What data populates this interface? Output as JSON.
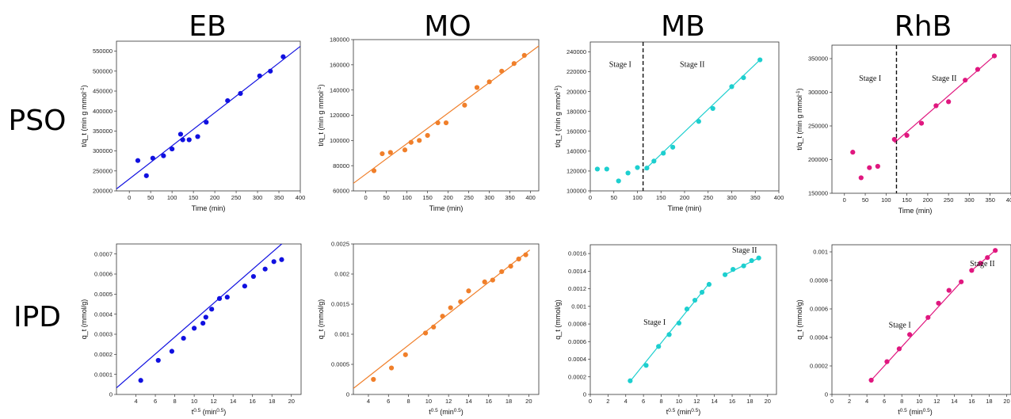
{
  "column_titles": [
    "EB",
    "MO",
    "MB",
    "RhB"
  ],
  "row_titles": [
    "PSO",
    "IPD"
  ],
  "chart_data": [
    {
      "id": "pso-eb",
      "type": "scatter",
      "color": "#1010e0",
      "xlabel": "Time (min)",
      "ylabel": "t/q_t (min g mmol^-1)",
      "xlim": [
        -30,
        400
      ],
      "ylim": [
        200000,
        575000
      ],
      "xticks": [
        0,
        50,
        100,
        150,
        200,
        250,
        300,
        350,
        400
      ],
      "yticks": [
        200000,
        250000,
        300000,
        350000,
        400000,
        450000,
        500000,
        550000
      ],
      "tick_decimals": 0,
      "points": [
        [
          20,
          276000
        ],
        [
          40,
          238000
        ],
        [
          55,
          282000
        ],
        [
          80,
          288000
        ],
        [
          100,
          305000
        ],
        [
          120,
          342000
        ],
        [
          125,
          328000
        ],
        [
          140,
          328000
        ],
        [
          160,
          336000
        ],
        [
          180,
          372000
        ],
        [
          230,
          426000
        ],
        [
          260,
          444000
        ],
        [
          305,
          488000
        ],
        [
          330,
          500000
        ],
        [
          360,
          536000
        ]
      ],
      "fits": [
        {
          "x": [
            -30,
            400
          ],
          "y": [
            205000,
            562000
          ]
        }
      ],
      "divider": null,
      "annotations": []
    },
    {
      "id": "pso-mo",
      "type": "scatter",
      "color": "#f07f2a",
      "xlabel": "Time (min)",
      "ylabel": "t/q_t (min g mmol^-1)",
      "xlim": [
        -30,
        420
      ],
      "ylim": [
        60000,
        180000
      ],
      "xticks": [
        0,
        50,
        100,
        150,
        200,
        250,
        300,
        350,
        400
      ],
      "yticks": [
        60000,
        80000,
        100000,
        120000,
        140000,
        160000,
        180000
      ],
      "tick_decimals": 0,
      "points": [
        [
          20,
          76000
        ],
        [
          40,
          89500
        ],
        [
          60,
          90500
        ],
        [
          95,
          92500
        ],
        [
          110,
          98500
        ],
        [
          130,
          100000
        ],
        [
          150,
          104000
        ],
        [
          175,
          114000
        ],
        [
          195,
          114000
        ],
        [
          240,
          128000
        ],
        [
          270,
          142000
        ],
        [
          300,
          146500
        ],
        [
          330,
          155000
        ],
        [
          360,
          161000
        ],
        [
          385,
          167500
        ]
      ],
      "fits": [
        {
          "x": [
            -30,
            420
          ],
          "y": [
            66000,
            175000
          ]
        }
      ],
      "divider": null,
      "annotations": []
    },
    {
      "id": "pso-mb",
      "type": "scatter",
      "color": "#1dcfcf",
      "xlabel": "Time (min)",
      "ylabel": "t/q_t (min g mmol^-1)",
      "xlim": [
        0,
        400
      ],
      "ylim": [
        100000,
        250000
      ],
      "xticks": [
        0,
        50,
        100,
        150,
        200,
        250,
        300,
        350,
        400
      ],
      "yticks": [
        100000,
        120000,
        140000,
        160000,
        180000,
        200000,
        220000,
        240000
      ],
      "tick_decimals": 0,
      "points": [
        [
          15,
          122000
        ],
        [
          35,
          122000
        ],
        [
          60,
          110000
        ],
        [
          80,
          118000
        ],
        [
          100,
          123500
        ],
        [
          120,
          123000
        ],
        [
          135,
          130000
        ],
        [
          155,
          138000
        ],
        [
          175,
          144000
        ],
        [
          230,
          170000
        ],
        [
          260,
          183000
        ],
        [
          300,
          205000
        ],
        [
          325,
          214000
        ],
        [
          360,
          232000
        ]
      ],
      "fits": [
        {
          "x": [
            115,
            360
          ],
          "y": [
            121000,
            232000
          ]
        }
      ],
      "divider": 112,
      "annotations": [
        {
          "text": "Stage I",
          "x": 40,
          "y": 225000
        },
        {
          "text": "Stage II",
          "x": 190,
          "y": 225000
        }
      ]
    },
    {
      "id": "pso-rhb",
      "type": "scatter",
      "color": "#e0177f",
      "xlabel": "Time (min)",
      "ylabel": "t/q_t (min g mmol^-1)",
      "xlim": [
        -30,
        400
      ],
      "ylim": [
        150000,
        370000
      ],
      "xticks": [
        0,
        50,
        100,
        150,
        200,
        250,
        300,
        350,
        400
      ],
      "yticks": [
        150000,
        200000,
        250000,
        300000,
        350000
      ],
      "tick_decimals": 0,
      "points": [
        [
          20,
          211000
        ],
        [
          40,
          173000
        ],
        [
          60,
          188000
        ],
        [
          80,
          190000
        ],
        [
          120,
          230000
        ],
        [
          150,
          236000
        ],
        [
          185,
          254000
        ],
        [
          220,
          280000
        ],
        [
          250,
          286000
        ],
        [
          290,
          318000
        ],
        [
          320,
          334000
        ],
        [
          360,
          354000
        ]
      ],
      "fits": [
        {
          "x": [
            120,
            360
          ],
          "y": [
            225000,
            354000
          ]
        }
      ],
      "divider": 125,
      "annotations": [
        {
          "text": "Stage I",
          "x": 35,
          "y": 317000
        },
        {
          "text": "Stage II",
          "x": 210,
          "y": 317000
        }
      ]
    },
    {
      "id": "ipd-eb",
      "type": "scatter",
      "color": "#1010e0",
      "xlabel": "t^0.5 (min^0.5)",
      "ylabel": "q_t (mmol/g)",
      "xlim": [
        2,
        21
      ],
      "ylim": [
        0,
        0.00075
      ],
      "xticks": [
        4,
        6,
        8,
        10,
        12,
        14,
        16,
        18,
        20
      ],
      "yticks": [
        0,
        0.0001,
        0.0002,
        0.0003,
        0.0004,
        0.0005,
        0.0006,
        0.0007
      ],
      "tick_decimals": 4,
      "points": [
        [
          4.5,
          7e-05
        ],
        [
          6.3,
          0.00017
        ],
        [
          7.7,
          0.000215
        ],
        [
          8.9,
          0.00028
        ],
        [
          10.0,
          0.00033
        ],
        [
          10.9,
          0.000355
        ],
        [
          11.2,
          0.000385
        ],
        [
          11.8,
          0.000425
        ],
        [
          12.6,
          0.000478
        ],
        [
          13.4,
          0.000485
        ],
        [
          15.2,
          0.00054
        ],
        [
          16.1,
          0.000588
        ],
        [
          17.3,
          0.000625
        ],
        [
          18.2,
          0.000662
        ],
        [
          19.0,
          0.000672
        ]
      ],
      "fits": [
        {
          "x": [
            2,
            19.6
          ],
          "y": [
            3.3e-05,
            0.000775
          ]
        }
      ],
      "divider": null,
      "annotations": []
    },
    {
      "id": "ipd-mo",
      "type": "scatter",
      "color": "#f07f2a",
      "xlabel": "t^0.5 (min^0.5)",
      "ylabel": "q_t (mmol/g)",
      "xlim": [
        2.5,
        21
      ],
      "ylim": [
        0,
        0.0025
      ],
      "xticks": [
        4,
        6,
        8,
        10,
        12,
        14,
        16,
        18,
        20
      ],
      "yticks": [
        0,
        0.0005,
        0.001,
        0.0015,
        0.002,
        0.0025
      ],
      "tick_decimals": 4,
      "points": [
        [
          4.5,
          0.00025
        ],
        [
          6.3,
          0.00044
        ],
        [
          7.7,
          0.00066
        ],
        [
          9.7,
          0.00102
        ],
        [
          10.5,
          0.00112
        ],
        [
          11.4,
          0.0013
        ],
        [
          12.2,
          0.00144
        ],
        [
          13.2,
          0.00154
        ],
        [
          14.0,
          0.00172
        ],
        [
          15.6,
          0.00187
        ],
        [
          16.4,
          0.0019
        ],
        [
          17.3,
          0.00204
        ],
        [
          18.2,
          0.00213
        ],
        [
          19.0,
          0.00225
        ],
        [
          19.7,
          0.00232
        ]
      ],
      "fits": [
        {
          "x": [
            2.5,
            20.1
          ],
          "y": [
            0.0001,
            0.0024
          ]
        }
      ],
      "divider": null,
      "annotations": []
    },
    {
      "id": "ipd-mb",
      "type": "scatter",
      "color": "#1dcfcf",
      "xlabel": "t^0.5 (min^0.5)",
      "ylabel": "q_t (mmol/g)",
      "xlim": [
        0,
        21
      ],
      "ylim": [
        0,
        0.0017
      ],
      "xticks": [
        0,
        2,
        4,
        6,
        8,
        10,
        12,
        14,
        16,
        18,
        20
      ],
      "yticks": [
        0,
        0.0002,
        0.0004,
        0.0006,
        0.0008,
        0.001,
        0.0012,
        0.0014,
        0.0016
      ],
      "tick_decimals": 4,
      "points": [
        [
          4.5,
          0.000155
        ],
        [
          6.3,
          0.00033
        ],
        [
          7.7,
          0.000545
        ],
        [
          8.9,
          0.00068
        ],
        [
          10.0,
          0.00081
        ],
        [
          10.9,
          0.00097
        ],
        [
          11.8,
          0.00107
        ],
        [
          12.6,
          0.00116
        ],
        [
          13.4,
          0.00125
        ],
        [
          15.2,
          0.00136
        ],
        [
          16.1,
          0.00142
        ],
        [
          17.3,
          0.00146
        ],
        [
          18.2,
          0.00152
        ],
        [
          19.0,
          0.00155
        ]
      ],
      "fits": [
        {
          "x": [
            4.5,
            13.4
          ],
          "y": [
            0.00015,
            0.00126
          ]
        },
        {
          "x": [
            15.2,
            19.0
          ],
          "y": [
            0.00136,
            0.00155
          ]
        }
      ],
      "divider": null,
      "annotations": [
        {
          "text": "Stage I",
          "x": 6,
          "y": 0.00079
        },
        {
          "text": "Stage II",
          "x": 16,
          "y": 0.00161
        }
      ]
    },
    {
      "id": "ipd-rhb",
      "type": "scatter",
      "color": "#e0177f",
      "xlabel": "t^0.5 (min^0.5)",
      "ylabel": "q_t (mmol/g)",
      "xlim": [
        0,
        20.5
      ],
      "ylim": [
        0,
        0.00105
      ],
      "xticks": [
        0,
        2,
        4,
        6,
        8,
        10,
        12,
        14,
        16,
        18,
        20
      ],
      "yticks": [
        0,
        0.0002,
        0.0004,
        0.0006,
        0.0008,
        0.001
      ],
      "tick_decimals": 4,
      "points": [
        [
          4.5,
          0.0001
        ],
        [
          6.3,
          0.00023
        ],
        [
          7.7,
          0.00032
        ],
        [
          8.9,
          0.00042
        ],
        [
          11.0,
          0.00054
        ],
        [
          12.2,
          0.00064
        ],
        [
          13.4,
          0.00073
        ],
        [
          14.8,
          0.00079
        ],
        [
          16.0,
          0.00087
        ],
        [
          17.0,
          0.00092
        ],
        [
          17.8,
          0.00096
        ],
        [
          18.7,
          0.00101
        ]
      ],
      "fits": [
        {
          "x": [
            4.5,
            14.8
          ],
          "y": [
            0.0001,
            0.00079
          ]
        },
        {
          "x": [
            16.0,
            18.7
          ],
          "y": [
            0.00087,
            0.00101
          ]
        }
      ],
      "divider": null,
      "annotations": [
        {
          "text": "Stage I",
          "x": 6.5,
          "y": 0.00047
        },
        {
          "text": "Stage II",
          "x": 15.8,
          "y": 0.0009
        }
      ]
    }
  ]
}
